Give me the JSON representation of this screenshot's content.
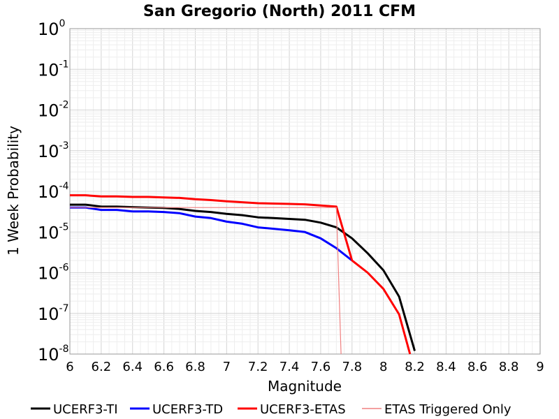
{
  "chart_data": {
    "type": "line",
    "title": "San Gregorio (North) 2011 CFM",
    "xlabel": "Magnitude",
    "ylabel": "1 Week Probability",
    "xlim": [
      6,
      9
    ],
    "ylim_exponents": [
      -8,
      0
    ],
    "yscale": "log",
    "x_ticks": [
      "6",
      "6.2",
      "6.4",
      "6.6",
      "6.8",
      "7",
      "7.2",
      "7.4",
      "7.6",
      "7.8",
      "8",
      "8.2",
      "8.4",
      "8.6",
      "8.8",
      "9"
    ],
    "y_ticks": [
      {
        "base": "10",
        "exp": "0",
        "value": 1
      },
      {
        "base": "10",
        "exp": "-1",
        "value": 0.1
      },
      {
        "base": "10",
        "exp": "-2",
        "value": 0.01
      },
      {
        "base": "10",
        "exp": "-3",
        "value": 0.001
      },
      {
        "base": "10",
        "exp": "-4",
        "value": 0.0001
      },
      {
        "base": "10",
        "exp": "-5",
        "value": 1e-05
      },
      {
        "base": "10",
        "exp": "-6",
        "value": 1e-06
      },
      {
        "base": "10",
        "exp": "-7",
        "value": 1e-07
      },
      {
        "base": "10",
        "exp": "-8",
        "value": 1e-08
      }
    ],
    "grid": true,
    "legend_position": "bottom",
    "series": [
      {
        "name": "UCERF3-TI",
        "color": "#000000",
        "x": [
          6.0,
          6.1,
          6.2,
          6.3,
          6.4,
          6.5,
          6.6,
          6.7,
          6.8,
          6.9,
          7.0,
          7.1,
          7.2,
          7.3,
          7.4,
          7.5,
          7.6,
          7.7,
          7.8,
          7.9,
          8.0,
          8.1,
          8.2
        ],
        "y": [
          4.7e-05,
          4.7e-05,
          4.2e-05,
          4.2e-05,
          4.1e-05,
          4e-05,
          3.9e-05,
          3.7e-05,
          3.3e-05,
          3.1e-05,
          2.8e-05,
          2.6e-05,
          2.3e-05,
          2.2e-05,
          2.1e-05,
          2e-05,
          1.7e-05,
          1.3e-05,
          7e-06,
          3e-06,
          1.15e-06,
          2.6e-07,
          1.2e-08
        ]
      },
      {
        "name": "UCERF3-TD",
        "color": "#0000ff",
        "x": [
          6.0,
          6.1,
          6.2,
          6.3,
          6.4,
          6.5,
          6.6,
          6.7,
          6.8,
          6.9,
          7.0,
          7.1,
          7.2,
          7.3,
          7.4,
          7.5,
          7.6,
          7.7,
          7.8
        ],
        "y": [
          4e-05,
          4e-05,
          3.5e-05,
          3.5e-05,
          3.2e-05,
          3.2e-05,
          3.1e-05,
          2.9e-05,
          2.4e-05,
          2.2e-05,
          1.8e-05,
          1.6e-05,
          1.3e-05,
          1.2e-05,
          1.1e-05,
          1e-05,
          7e-06,
          4e-06,
          2e-06
        ]
      },
      {
        "name": "UCERF3-ETAS",
        "color": "#ff0000",
        "x": [
          6.0,
          6.1,
          6.2,
          6.3,
          6.4,
          6.5,
          6.6,
          6.7,
          6.8,
          6.9,
          7.0,
          7.1,
          7.2,
          7.3,
          7.4,
          7.5,
          7.6,
          7.7,
          7.8,
          7.9,
          8.0,
          8.1,
          8.17
        ],
        "y": [
          8e-05,
          8e-05,
          7.5e-05,
          7.5e-05,
          7.3e-05,
          7.3e-05,
          7.1e-05,
          6.9e-05,
          6.4e-05,
          6.1e-05,
          5.7e-05,
          5.4e-05,
          5.1e-05,
          5e-05,
          4.9e-05,
          4.8e-05,
          4.5e-05,
          4.2e-05,
          2e-06,
          1e-06,
          4e-07,
          9.5e-08,
          1e-08
        ]
      },
      {
        "name": "ETAS Triggered Only",
        "color": "#f08080",
        "x": [
          6.0,
          7.7,
          7.73
        ],
        "y": [
          4e-05,
          4e-05,
          1e-08
        ]
      }
    ]
  }
}
